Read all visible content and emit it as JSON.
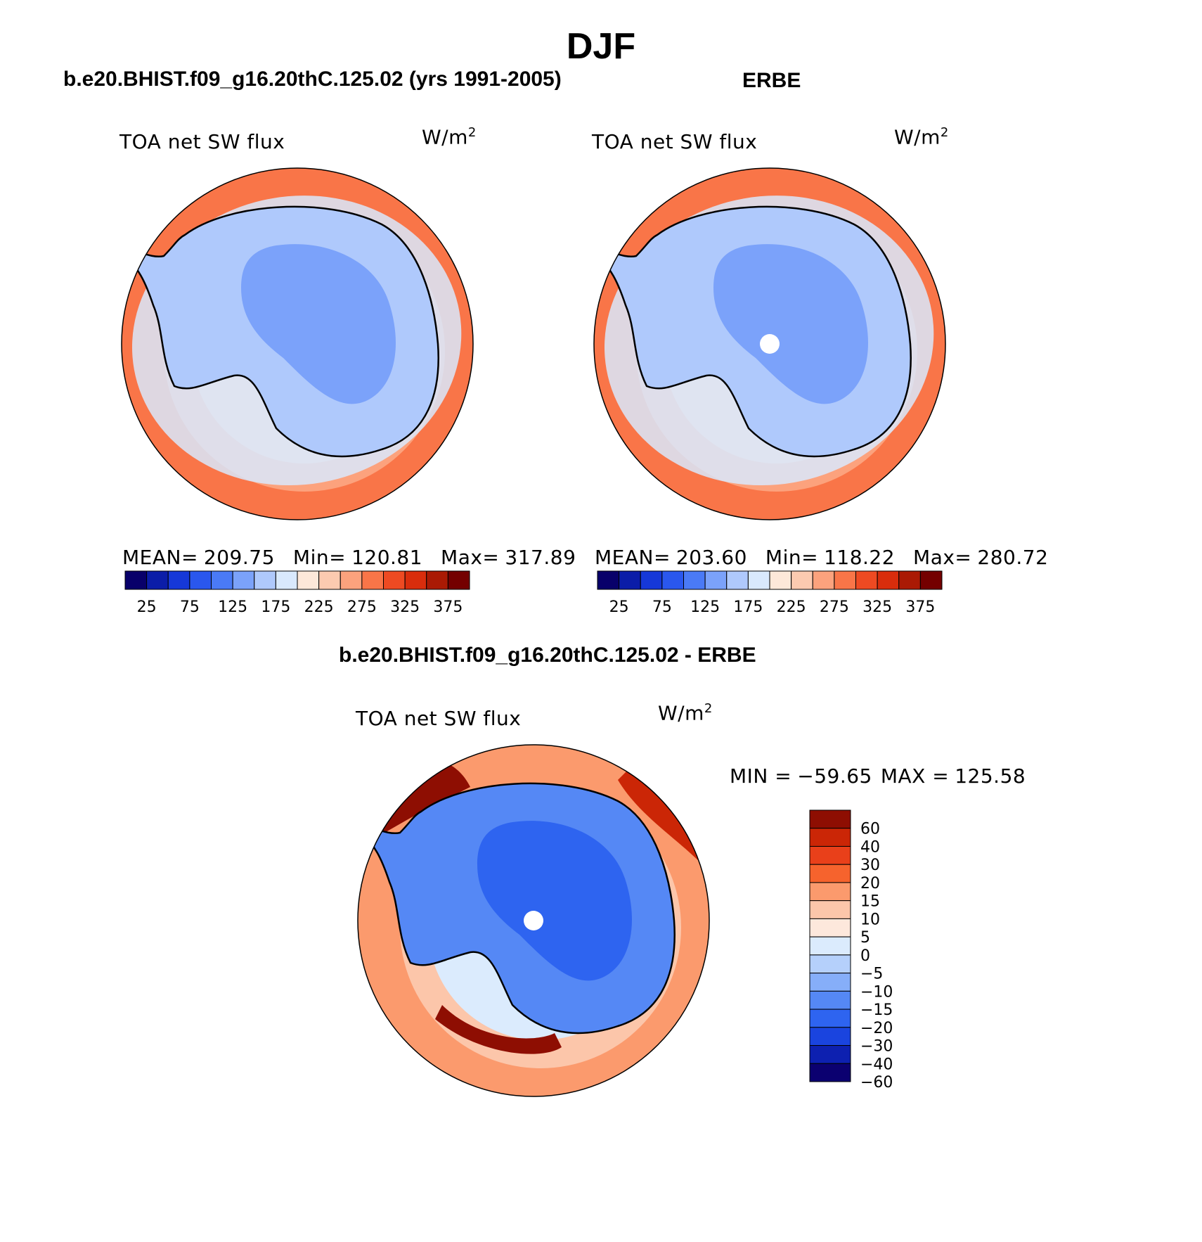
{
  "figure": {
    "season": "DJF",
    "model_title": "b.e20.BHIST.f09_g16.20thC.125.02 (yrs 1991-2005)",
    "obs_title": "ERBE",
    "diff_title": "b.e20.BHIST.f09_g16.20thC.125.02 - ERBE",
    "variable": "TOA net SW flux",
    "units_base": "W/m",
    "units_exp": "2"
  },
  "colors": {
    "abs": [
      "#08006a",
      "#0b1da8",
      "#1638d8",
      "#2a57ee",
      "#4a7af6",
      "#7ba2fa",
      "#afc9fc",
      "#d9e9fd",
      "#fde8d9",
      "#fccab0",
      "#fca27d",
      "#f97548",
      "#ee4a22",
      "#d92d0c",
      "#aa1a04",
      "#740000"
    ],
    "diff": [
      "#0b0070",
      "#0d20b0",
      "#1a44df",
      "#2e64f0",
      "#5588f5",
      "#86aef9",
      "#b5d0fb",
      "#dbebfd",
      "#fde8dc",
      "#fcc6aa",
      "#fb9a6d",
      "#f6632d",
      "#e9401a",
      "#cb2606",
      "#8e0e02"
    ]
  },
  "chart_data": [
    {
      "type": "heatmap",
      "id": "model",
      "title": "b.e20.BHIST.f09_g16.20thC.125.02 (yrs 1991-2005)",
      "variable": "TOA net SW flux",
      "units": "W/m2",
      "stats": {
        "mean_label": "MEAN=",
        "mean": "209.75",
        "min_label": "Min=",
        "min": "120.81",
        "max_label": "Max=",
        "max": "317.89"
      },
      "colorbar_tick_labels": [
        "25",
        "75",
        "125",
        "175",
        "225",
        "275",
        "325",
        "375"
      ],
      "levels": [
        25,
        50,
        75,
        100,
        125,
        150,
        175,
        200,
        225,
        250,
        275,
        300,
        325,
        350,
        375
      ],
      "region_levels": {
        "ocean_outer": 275,
        "ocean_mid": 250,
        "ocean_inner": 225,
        "coast_ring": 175,
        "antarctica": 150,
        "plateau": 125
      }
    },
    {
      "type": "heatmap",
      "id": "obs",
      "title": "ERBE",
      "variable": "TOA net SW flux",
      "units": "W/m2",
      "stats": {
        "mean_label": "MEAN=",
        "mean": "203.60",
        "min_label": "Min=",
        "min": "118.22",
        "max_label": "Max=",
        "max": "280.72"
      },
      "colorbar_tick_labels": [
        "25",
        "75",
        "125",
        "175",
        "225",
        "275",
        "325",
        "375"
      ],
      "levels": [
        25,
        50,
        75,
        100,
        125,
        150,
        175,
        200,
        225,
        250,
        275,
        300,
        325,
        350,
        375
      ],
      "region_levels": {
        "ocean_outer": 275,
        "ocean_mid": 250,
        "ocean_inner": 225,
        "coast_ring": 175,
        "antarctica": 150,
        "plateau": 125
      }
    },
    {
      "type": "heatmap",
      "id": "diff",
      "title": "b.e20.BHIST.f09_g16.20thC.125.02 - ERBE",
      "variable": "TOA net SW flux",
      "units": "W/m2",
      "stats": {
        "min_label": "MIN =",
        "min": "−59.65",
        "max_label": "MAX =",
        "max": "125.58"
      },
      "colorbar_tick_labels": [
        "60",
        "40",
        "30",
        "20",
        "15",
        "10",
        "5",
        "0",
        "−5",
        "−10",
        "−15",
        "−20",
        "−30",
        "−40",
        "−60"
      ],
      "levels": [
        -60,
        -40,
        -30,
        -20,
        -15,
        -10,
        -5,
        0,
        5,
        10,
        15,
        20,
        30,
        40,
        60
      ],
      "region_levels": {
        "ocean_outer": 10,
        "ocean_mid": 5,
        "ocean_inner": -5,
        "antarctica": -20,
        "plateau": -30,
        "coastal_bias": 40
      }
    }
  ]
}
